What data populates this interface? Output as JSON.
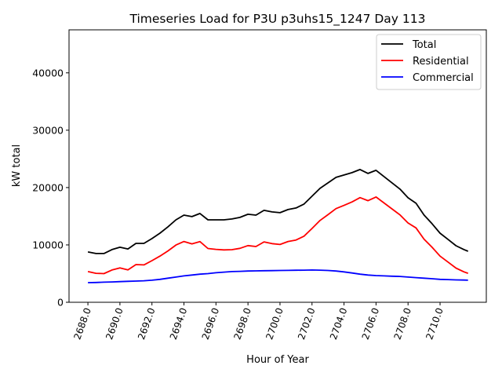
{
  "chart_data": {
    "type": "line",
    "title": "Timeseries Load for P3U p3uhs15_1247  Day 113",
    "xlabel": "Hour of Year",
    "ylabel": "kW total",
    "xlim": [
      2686.82,
      2712.89
    ],
    "ylim": [
      0,
      47500
    ],
    "xticks": [
      2688,
      2690,
      2692,
      2694,
      2696,
      2698,
      2700,
      2702,
      2704,
      2706,
      2708,
      2710
    ],
    "xtick_labels": [
      "2688.0",
      "2690.0",
      "2692.0",
      "2694.0",
      "2696.0",
      "2698.0",
      "2700.0",
      "2702.0",
      "2704.0",
      "2706.0",
      "2708.0",
      "2710.0"
    ],
    "yticks": [
      0,
      10000,
      20000,
      30000,
      40000
    ],
    "ytick_labels": [
      "0",
      "10000",
      "20000",
      "30000",
      "40000"
    ],
    "grid": false,
    "legend_position": "top-right",
    "x": [
      2688,
      2688.5,
      2689,
      2689.5,
      2690,
      2690.5,
      2691,
      2691.5,
      2692,
      2692.5,
      2693,
      2693.5,
      2694,
      2694.5,
      2695,
      2695.5,
      2696,
      2696.5,
      2697,
      2697.5,
      2698,
      2698.5,
      2699,
      2699.5,
      2700,
      2700.5,
      2701,
      2701.5,
      2702,
      2702.5,
      2703,
      2703.5,
      2704,
      2704.5,
      2705,
      2705.5,
      2706,
      2706.5,
      2707,
      2707.5,
      2708,
      2708.5,
      2709,
      2709.5,
      2710,
      2710.5,
      2711,
      2711.5,
      2711.75
    ],
    "series": [
      {
        "name": "Total",
        "color": "#000000",
        "values": [
          8770,
          8500,
          8500,
          9180,
          9590,
          9300,
          10270,
          10270,
          11100,
          12050,
          13150,
          14380,
          15200,
          14930,
          15480,
          14380,
          14380,
          14380,
          14520,
          14800,
          15340,
          15200,
          16030,
          15750,
          15620,
          16160,
          16440,
          17120,
          18490,
          19860,
          20820,
          21780,
          22190,
          22600,
          23150,
          22470,
          23010,
          21920,
          20820,
          19730,
          18220,
          17260,
          15210,
          13700,
          12050,
          10960,
          9860,
          9180,
          8900
        ]
      },
      {
        "name": "Residential",
        "color": "#ff0000",
        "values": [
          5350,
          5050,
          5000,
          5630,
          5990,
          5650,
          6570,
          6520,
          7250,
          8050,
          8950,
          9980,
          10600,
          10180,
          10580,
          9380,
          9230,
          9130,
          9170,
          9400,
          9890,
          9720,
          10530,
          10230,
          10080,
          10600,
          10860,
          11520,
          12870,
          14260,
          15270,
          16330,
          16890,
          17500,
          18250,
          17720,
          18360,
          17320,
          16270,
          15230,
          13820,
          12960,
          11010,
          9600,
          8050,
          7010,
          5960,
          5300,
          5050
        ]
      },
      {
        "name": "Commercial",
        "color": "#0000ff",
        "values": [
          3420,
          3450,
          3500,
          3550,
          3600,
          3650,
          3700,
          3750,
          3850,
          4000,
          4200,
          4400,
          4600,
          4750,
          4900,
          5000,
          5150,
          5250,
          5350,
          5400,
          5450,
          5480,
          5500,
          5520,
          5540,
          5560,
          5580,
          5600,
          5620,
          5600,
          5550,
          5450,
          5300,
          5100,
          4900,
          4750,
          4650,
          4600,
          4550,
          4500,
          4400,
          4300,
          4200,
          4100,
          4000,
          3950,
          3900,
          3880,
          3850
        ]
      }
    ]
  }
}
